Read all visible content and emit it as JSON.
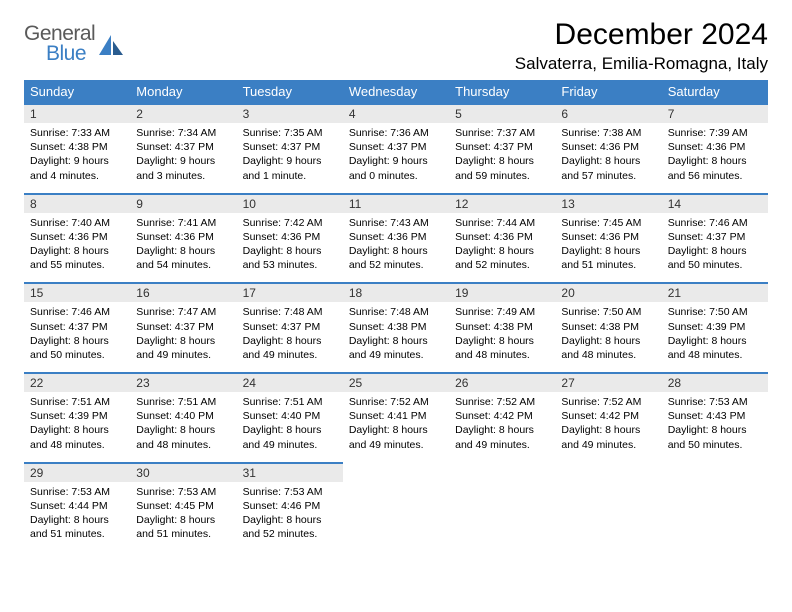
{
  "logo": {
    "word1": "General",
    "word2": "Blue"
  },
  "title": "December 2024",
  "location": "Salvaterra, Emilia-Romagna, Italy",
  "colors": {
    "accent": "#3b7fc4",
    "header_text": "#ffffff",
    "daynum_bg": "#eaeaea",
    "body_text": "#000000",
    "logo_gray": "#5a5a5a"
  },
  "weekdays": [
    "Sunday",
    "Monday",
    "Tuesday",
    "Wednesday",
    "Thursday",
    "Friday",
    "Saturday"
  ],
  "weeks": [
    [
      {
        "n": "1",
        "sr": "7:33 AM",
        "ss": "4:38 PM",
        "dl": "9 hours and 4 minutes."
      },
      {
        "n": "2",
        "sr": "7:34 AM",
        "ss": "4:37 PM",
        "dl": "9 hours and 3 minutes."
      },
      {
        "n": "3",
        "sr": "7:35 AM",
        "ss": "4:37 PM",
        "dl": "9 hours and 1 minute."
      },
      {
        "n": "4",
        "sr": "7:36 AM",
        "ss": "4:37 PM",
        "dl": "9 hours and 0 minutes."
      },
      {
        "n": "5",
        "sr": "7:37 AM",
        "ss": "4:37 PM",
        "dl": "8 hours and 59 minutes."
      },
      {
        "n": "6",
        "sr": "7:38 AM",
        "ss": "4:36 PM",
        "dl": "8 hours and 57 minutes."
      },
      {
        "n": "7",
        "sr": "7:39 AM",
        "ss": "4:36 PM",
        "dl": "8 hours and 56 minutes."
      }
    ],
    [
      {
        "n": "8",
        "sr": "7:40 AM",
        "ss": "4:36 PM",
        "dl": "8 hours and 55 minutes."
      },
      {
        "n": "9",
        "sr": "7:41 AM",
        "ss": "4:36 PM",
        "dl": "8 hours and 54 minutes."
      },
      {
        "n": "10",
        "sr": "7:42 AM",
        "ss": "4:36 PM",
        "dl": "8 hours and 53 minutes."
      },
      {
        "n": "11",
        "sr": "7:43 AM",
        "ss": "4:36 PM",
        "dl": "8 hours and 52 minutes."
      },
      {
        "n": "12",
        "sr": "7:44 AM",
        "ss": "4:36 PM",
        "dl": "8 hours and 52 minutes."
      },
      {
        "n": "13",
        "sr": "7:45 AM",
        "ss": "4:36 PM",
        "dl": "8 hours and 51 minutes."
      },
      {
        "n": "14",
        "sr": "7:46 AM",
        "ss": "4:37 PM",
        "dl": "8 hours and 50 minutes."
      }
    ],
    [
      {
        "n": "15",
        "sr": "7:46 AM",
        "ss": "4:37 PM",
        "dl": "8 hours and 50 minutes."
      },
      {
        "n": "16",
        "sr": "7:47 AM",
        "ss": "4:37 PM",
        "dl": "8 hours and 49 minutes."
      },
      {
        "n": "17",
        "sr": "7:48 AM",
        "ss": "4:37 PM",
        "dl": "8 hours and 49 minutes."
      },
      {
        "n": "18",
        "sr": "7:48 AM",
        "ss": "4:38 PM",
        "dl": "8 hours and 49 minutes."
      },
      {
        "n": "19",
        "sr": "7:49 AM",
        "ss": "4:38 PM",
        "dl": "8 hours and 48 minutes."
      },
      {
        "n": "20",
        "sr": "7:50 AM",
        "ss": "4:38 PM",
        "dl": "8 hours and 48 minutes."
      },
      {
        "n": "21",
        "sr": "7:50 AM",
        "ss": "4:39 PM",
        "dl": "8 hours and 48 minutes."
      }
    ],
    [
      {
        "n": "22",
        "sr": "7:51 AM",
        "ss": "4:39 PM",
        "dl": "8 hours and 48 minutes."
      },
      {
        "n": "23",
        "sr": "7:51 AM",
        "ss": "4:40 PM",
        "dl": "8 hours and 48 minutes."
      },
      {
        "n": "24",
        "sr": "7:51 AM",
        "ss": "4:40 PM",
        "dl": "8 hours and 49 minutes."
      },
      {
        "n": "25",
        "sr": "7:52 AM",
        "ss": "4:41 PM",
        "dl": "8 hours and 49 minutes."
      },
      {
        "n": "26",
        "sr": "7:52 AM",
        "ss": "4:42 PM",
        "dl": "8 hours and 49 minutes."
      },
      {
        "n": "27",
        "sr": "7:52 AM",
        "ss": "4:42 PM",
        "dl": "8 hours and 49 minutes."
      },
      {
        "n": "28",
        "sr": "7:53 AM",
        "ss": "4:43 PM",
        "dl": "8 hours and 50 minutes."
      }
    ],
    [
      {
        "n": "29",
        "sr": "7:53 AM",
        "ss": "4:44 PM",
        "dl": "8 hours and 51 minutes."
      },
      {
        "n": "30",
        "sr": "7:53 AM",
        "ss": "4:45 PM",
        "dl": "8 hours and 51 minutes."
      },
      {
        "n": "31",
        "sr": "7:53 AM",
        "ss": "4:46 PM",
        "dl": "8 hours and 52 minutes."
      },
      null,
      null,
      null,
      null
    ]
  ],
  "labels": {
    "sunrise": "Sunrise: ",
    "sunset": "Sunset: ",
    "daylight": "Daylight: "
  }
}
